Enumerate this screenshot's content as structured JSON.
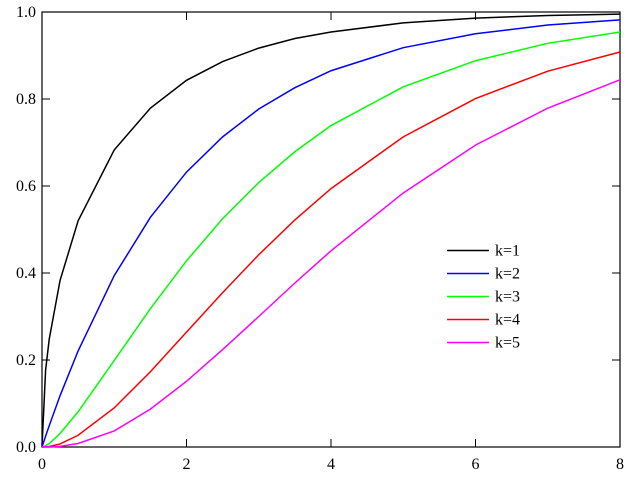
{
  "chart_data": {
    "type": "line",
    "x": [
      0,
      0.05,
      0.1,
      0.25,
      0.5,
      1,
      1.5,
      2,
      2.5,
      3,
      3.5,
      4,
      5,
      6,
      7,
      8
    ],
    "series": [
      {
        "name": "k=1",
        "color": "#000000",
        "values": [
          0,
          0.177,
          0.248,
          0.383,
          0.52,
          0.683,
          0.779,
          0.843,
          0.886,
          0.917,
          0.939,
          0.954,
          0.975,
          0.986,
          0.992,
          0.995
        ]
      },
      {
        "name": "k=2",
        "color": "#0000ff",
        "values": [
          0,
          0.025,
          0.049,
          0.118,
          0.221,
          0.394,
          0.528,
          0.632,
          0.713,
          0.777,
          0.826,
          0.865,
          0.918,
          0.95,
          0.97,
          0.982
        ]
      },
      {
        "name": "k=3",
        "color": "#00ff00",
        "values": [
          0,
          0.003,
          0.008,
          0.031,
          0.081,
          0.199,
          0.318,
          0.428,
          0.525,
          0.608,
          0.679,
          0.739,
          0.828,
          0.888,
          0.928,
          0.954
        ]
      },
      {
        "name": "k=4",
        "color": "#ff0000",
        "values": [
          0,
          0.0003,
          0.0012,
          0.007,
          0.027,
          0.09,
          0.173,
          0.264,
          0.355,
          0.442,
          0.522,
          0.594,
          0.713,
          0.801,
          0.864,
          0.908
        ]
      },
      {
        "name": "k=5",
        "color": "#ff00ff",
        "values": [
          0,
          0,
          0.0001,
          0.0015,
          0.008,
          0.037,
          0.087,
          0.151,
          0.224,
          0.3,
          0.377,
          0.451,
          0.584,
          0.694,
          0.779,
          0.844
        ]
      }
    ],
    "xlim": [
      0,
      8
    ],
    "ylim": [
      0,
      1
    ],
    "xticks": [
      0,
      2,
      4,
      6,
      8
    ],
    "yticks": [
      {
        "value": 0,
        "label": "0.0"
      },
      {
        "value": 0.2,
        "label": "0.2"
      },
      {
        "value": 0.4,
        "label": "0.4"
      },
      {
        "value": 0.6,
        "label": "0.6"
      },
      {
        "value": 0.8,
        "label": "0.8"
      },
      {
        "value": 1,
        "label": "1.0"
      }
    ],
    "legend": "center right"
  }
}
